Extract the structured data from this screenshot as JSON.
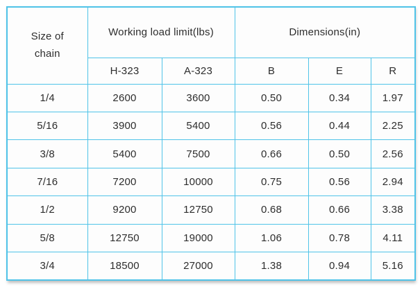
{
  "colors": {
    "border": "#4fc3e8",
    "text": "#2d2d2d",
    "background": "#ffffff"
  },
  "chart_data": {
    "type": "table",
    "corner_header": "Size of chain",
    "column_groups": [
      {
        "label": "Working load limit(lbs)",
        "columns": [
          "H-323",
          "A-323"
        ]
      },
      {
        "label": "Dimensions(in)",
        "columns": [
          "B",
          "E",
          "R"
        ]
      }
    ],
    "rows": [
      [
        "1/4",
        "2600",
        "3600",
        "0.50",
        "0.34",
        "1.97"
      ],
      [
        "5/16",
        "3900",
        "5400",
        "0.56",
        "0.44",
        "2.25"
      ],
      [
        "3/8",
        "5400",
        "7500",
        "0.66",
        "0.50",
        "2.56"
      ],
      [
        "7/16",
        "7200",
        "10000",
        "0.75",
        "0.56",
        "2.94"
      ],
      [
        "1/2",
        "9200",
        "12750",
        "0.68",
        "0.66",
        "3.38"
      ],
      [
        "5/8",
        "12750",
        "19000",
        "1.06",
        "0.78",
        "4.11"
      ],
      [
        "3/4",
        "18500",
        "27000",
        "1.38",
        "0.94",
        "5.16"
      ]
    ]
  }
}
